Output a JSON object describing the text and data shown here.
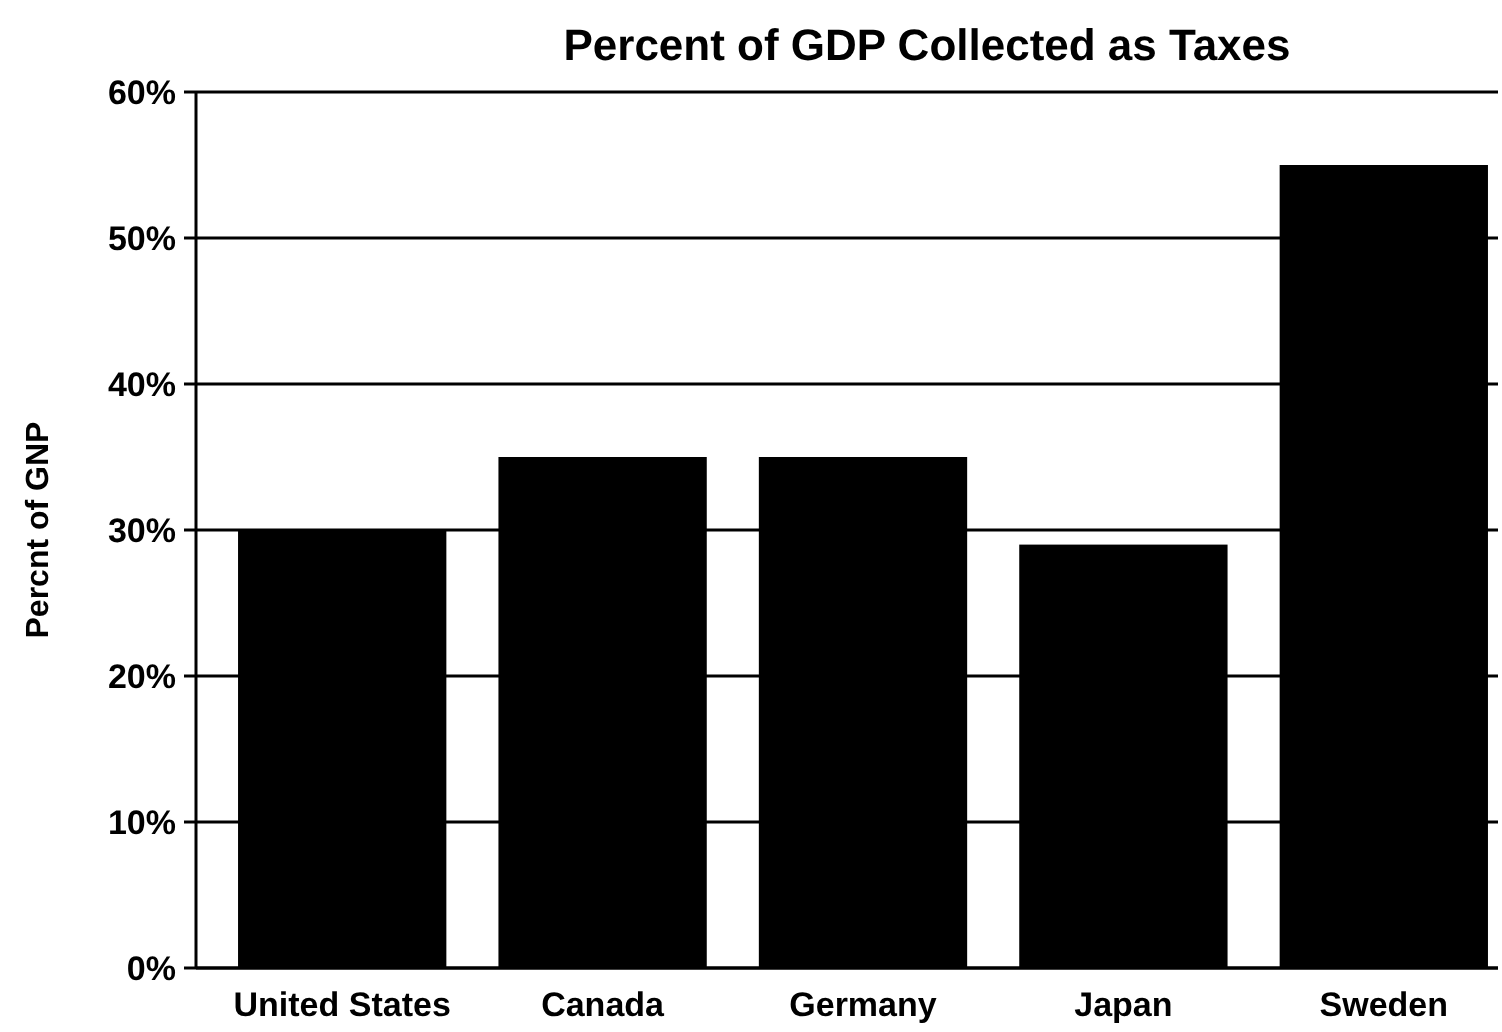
{
  "chart_data": {
    "type": "bar",
    "title": "Percent of GDP Collected as Taxes",
    "ylabel": "Percnt of GNP",
    "categories": [
      "United States",
      "Canada",
      "Germany",
      "Japan",
      "Sweden"
    ],
    "values": [
      30,
      35,
      35,
      29,
      55
    ],
    "color": "#000000",
    "ylim": [
      0,
      60
    ],
    "yticks": [
      {
        "value": 0,
        "label": "0%"
      },
      {
        "value": 10,
        "label": "10%"
      },
      {
        "value": 20,
        "label": "20%"
      },
      {
        "value": 30,
        "label": "30%"
      },
      {
        "value": 40,
        "label": "40%"
      },
      {
        "value": 50,
        "label": "50%"
      },
      {
        "value": 60,
        "label": "60%"
      }
    ],
    "grid": "y"
  }
}
